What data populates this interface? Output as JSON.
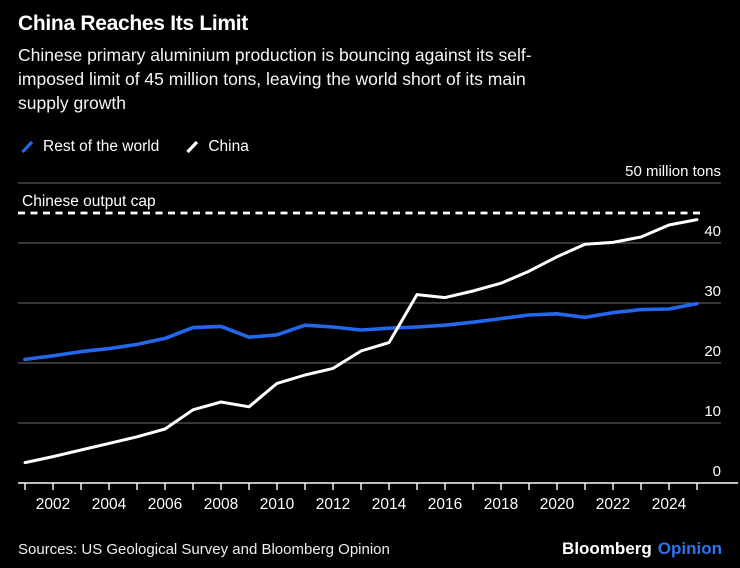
{
  "header": {
    "title": "China Reaches Its Limit",
    "subtitle_lines": [
      "Chinese primary aluminium production is bouncing against its self-",
      "imposed limit of 45 million tons, leaving the world short of its main",
      "supply growth"
    ]
  },
  "legend": [
    {
      "label": "Rest of the world",
      "color": "#2367ec"
    },
    {
      "label": "China",
      "color": "#ffffff"
    }
  ],
  "chart_data": {
    "type": "line",
    "title": "China Reaches Its Limit",
    "xlabel": "",
    "ylabel": "million tons",
    "x": [
      2001,
      2002,
      2003,
      2004,
      2005,
      2006,
      2007,
      2008,
      2009,
      2010,
      2011,
      2012,
      2013,
      2014,
      2015,
      2016,
      2017,
      2018,
      2019,
      2020,
      2021,
      2022,
      2023,
      2024,
      2025
    ],
    "series": [
      {
        "name": "Rest of the world",
        "color": "#2367ec",
        "values": [
          20.6,
          21.2,
          21.9,
          22.4,
          23.1,
          24.1,
          25.9,
          26.1,
          24.3,
          24.7,
          26.3,
          26.0,
          25.5,
          25.8,
          26.0,
          26.3,
          26.8,
          27.4,
          28.0,
          28.2,
          27.6,
          28.4,
          28.9,
          29.0,
          29.9
        ]
      },
      {
        "name": "China",
        "color": "#ffffff",
        "values": [
          3.4,
          4.4,
          5.5,
          6.6,
          7.7,
          9.0,
          12.2,
          13.5,
          12.7,
          16.6,
          18.0,
          19.1,
          22.0,
          23.4,
          31.4,
          30.9,
          32.0,
          33.3,
          35.3,
          37.7,
          39.8,
          40.1,
          41.0,
          43.0,
          43.9
        ]
      }
    ],
    "annotation": {
      "label": "Chinese output cap",
      "value": 45,
      "style": "dashed"
    },
    "yticks": [
      0,
      10,
      20,
      30,
      40,
      50
    ],
    "ytick_labels": [
      "0",
      "10",
      "20",
      "30",
      "40",
      "50 million tons"
    ],
    "xticks_labeled": [
      2002,
      2004,
      2006,
      2008,
      2010,
      2012,
      2014,
      2016,
      2018,
      2020,
      2022,
      2024
    ],
    "ylim": [
      0,
      52
    ],
    "xlim": [
      2001,
      2025
    ],
    "grid": true,
    "legend_position": "top-left"
  },
  "footer": {
    "sources": "Sources: US Geological Survey and Bloomberg Opinion",
    "brand": {
      "bloomberg": "Bloomberg",
      "opinion": "Opinion"
    }
  },
  "colors": {
    "background": "#000000",
    "grid": "#6b6b6b",
    "axis": "#ffffff",
    "accent_blue": "#2367ec",
    "opinion_blue": "#2e73f0"
  }
}
